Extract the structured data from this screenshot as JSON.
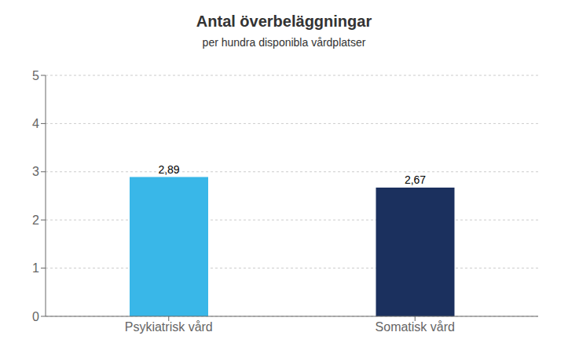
{
  "chart_data": {
    "type": "bar",
    "title": "Antal överbeläggningar",
    "subtitle": "per hundra disponibla vårdplatser",
    "categories": [
      "Psykiatrisk vård",
      "Somatisk vård"
    ],
    "values": [
      2.89,
      2.67
    ],
    "value_labels": [
      "2,89",
      "2,67"
    ],
    "colors": [
      "#39B7E8",
      "#1B305E"
    ],
    "ylim": [
      0,
      5
    ],
    "yticks": [
      0,
      1,
      2,
      3,
      4,
      5
    ],
    "grid": true,
    "data_labels": true
  }
}
